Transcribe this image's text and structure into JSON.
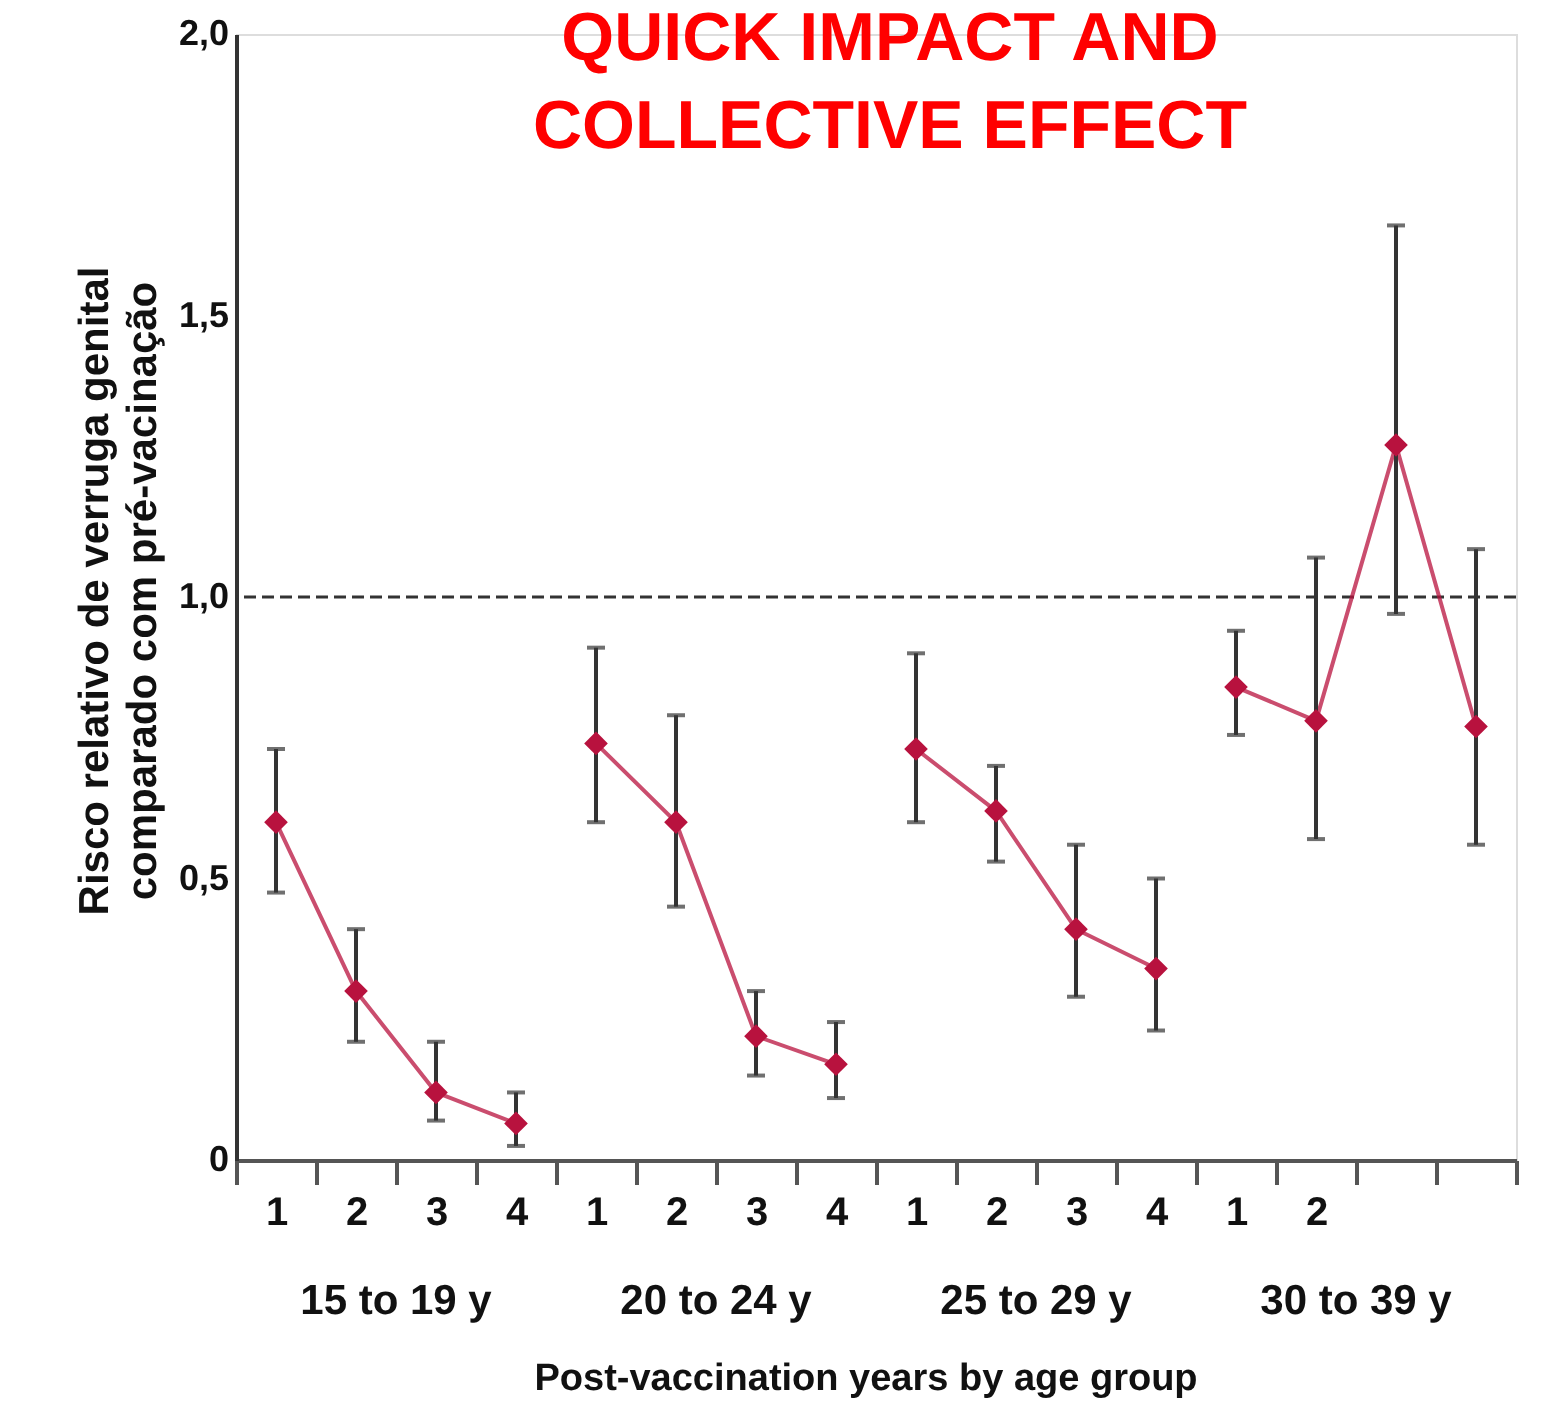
{
  "chart_data": {
    "type": "line",
    "title": "QUICK IMPACT AND\nCOLLECTIVE EFFECT",
    "xlabel": "Post-vaccination years by age group",
    "ylabel": "Risco relativo de verruga genital\ncomparado com pré-vacinação",
    "categories": [
      "1",
      "2",
      "3",
      "4",
      "1",
      "2",
      "3",
      "4",
      "1",
      "2",
      "3",
      "4",
      "1",
      "2",
      null,
      null
    ],
    "series": [
      {
        "color": "#b8123e",
        "values": [
          0.6,
          0.3,
          0.12,
          0.065,
          null,
          null,
          null,
          null,
          null,
          null,
          null,
          null,
          null,
          null,
          null,
          null
        ],
        "errors": [
          [
            0.475,
            0.73
          ],
          [
            0.21,
            0.41
          ],
          [
            0.07,
            0.21
          ],
          [
            0.025,
            0.12
          ],
          null,
          null,
          null,
          null,
          null,
          null,
          null,
          null,
          null,
          null,
          null,
          null
        ]
      },
      {
        "color": "#b8123e",
        "values": [
          null,
          null,
          null,
          null,
          0.74,
          0.6,
          0.22,
          0.17,
          null,
          null,
          null,
          null,
          null,
          null,
          null,
          null
        ],
        "errors": [
          null,
          null,
          null,
          null,
          [
            0.6,
            0.91
          ],
          [
            0.45,
            0.79
          ],
          [
            0.15,
            0.3
          ],
          [
            0.11,
            0.245
          ],
          null,
          null,
          null,
          null,
          null,
          null,
          null,
          null
        ]
      },
      {
        "color": "#b8123e",
        "values": [
          null,
          null,
          null,
          null,
          null,
          null,
          null,
          null,
          0.73,
          0.62,
          0.41,
          0.34,
          null,
          null,
          null,
          null
        ],
        "errors": [
          null,
          null,
          null,
          null,
          null,
          null,
          null,
          null,
          [
            0.6,
            0.9
          ],
          [
            0.53,
            0.7
          ],
          [
            0.29,
            0.56
          ],
          [
            0.23,
            0.5
          ],
          null,
          null,
          null,
          null
        ]
      },
      {
        "color": "#b8123e",
        "values": [
          null,
          null,
          null,
          null,
          null,
          null,
          null,
          null,
          null,
          null,
          null,
          null,
          0.84,
          0.78,
          1.27,
          0.77
        ],
        "errors": [
          null,
          null,
          null,
          null,
          null,
          null,
          null,
          null,
          null,
          null,
          null,
          null,
          [
            0.755,
            0.94
          ],
          [
            0.57,
            1.07
          ],
          [
            0.97,
            1.66
          ],
          [
            0.56,
            1.085
          ]
        ]
      }
    ],
    "marker": "diamond",
    "ylim": [
      0,
      2.0
    ],
    "yticks": [
      {
        "value": 0,
        "label": "0"
      },
      {
        "value": 0.5,
        "label": "0,5"
      },
      {
        "value": 1.0,
        "label": "1,0"
      },
      {
        "value": 1.5,
        "label": "1,5"
      },
      {
        "value": 2.0,
        "label": "2,0"
      }
    ],
    "ref_lines": [
      {
        "axis": "y",
        "value": 1.0,
        "color": "#333333",
        "line_style": "dashed"
      }
    ],
    "annotations": [
      "15 to 19 y",
      "20 to 24 y",
      "25 to 29 y",
      "30 to 39 y"
    ],
    "grid": false
  }
}
